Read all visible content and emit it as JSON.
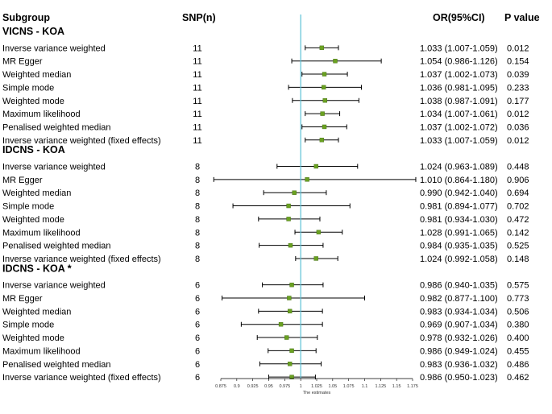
{
  "header": {
    "subgroup": "Subgroup",
    "snp": "SNP(n)",
    "or": "OR(95%CI)",
    "pvalue": "P value"
  },
  "chart_data": {
    "type": "forest",
    "xlabel": "The estimates",
    "xlim": [
      0.875,
      1.175
    ],
    "ticks": [
      0.875,
      0.9,
      0.925,
      0.95,
      0.975,
      1,
      1.025,
      1.05,
      1.075,
      1.1,
      1.125,
      1.15,
      1.175
    ],
    "tick_labels": [
      "0.875",
      "0.9",
      "0.925",
      "0.95",
      "0.975",
      "1",
      "1.025",
      "1.05",
      "1.075",
      "1.1",
      "1.125",
      "1.15",
      "1.175"
    ],
    "reference_line": 1,
    "colors": {
      "point": "#6aa121",
      "reference": "#5bc0d6",
      "line": "#000000"
    },
    "groups": [
      {
        "title": "VICNS - KOA",
        "rows": [
          {
            "method": "Inverse variance weighted",
            "snp": "11",
            "or": 1.033,
            "lo": 1.007,
            "hi": 1.059,
            "ci_text": "1.033 (1.007-1.059)",
            "p": "0.012"
          },
          {
            "method": "MR Egger",
            "snp": "11",
            "or": 1.054,
            "lo": 0.986,
            "hi": 1.126,
            "ci_text": "1.054 (0.986-1.126)",
            "p": "0.154"
          },
          {
            "method": "Weighted median",
            "snp": "11",
            "or": 1.037,
            "lo": 1.002,
            "hi": 1.073,
            "ci_text": "1.037 (1.002-1.073)",
            "p": "0.039"
          },
          {
            "method": "Simple mode",
            "snp": "11",
            "or": 1.036,
            "lo": 0.981,
            "hi": 1.095,
            "ci_text": "1.036 (0.981-1.095)",
            "p": "0.233"
          },
          {
            "method": "Weighted mode",
            "snp": "11",
            "or": 1.038,
            "lo": 0.987,
            "hi": 1.091,
            "ci_text": "1.038 (0.987-1.091)",
            "p": "0.177"
          },
          {
            "method": "Maximum likelihood",
            "snp": "11",
            "or": 1.034,
            "lo": 1.007,
            "hi": 1.061,
            "ci_text": "1.034 (1.007-1.061)",
            "p": "0.012"
          },
          {
            "method": "Penalised weighted median",
            "snp": "11",
            "or": 1.037,
            "lo": 1.002,
            "hi": 1.072,
            "ci_text": "1.037 (1.002-1.072)",
            "p": "0.036"
          },
          {
            "method": "Inverse variance weighted (fixed effects)",
            "snp": "11",
            "or": 1.033,
            "lo": 1.007,
            "hi": 1.059,
            "ci_text": "1.033 (1.007-1.059)",
            "p": "0.012"
          }
        ]
      },
      {
        "title": "IDCNS - KOA",
        "rows": [
          {
            "method": "Inverse variance weighted",
            "snp": "8",
            "or": 1.024,
            "lo": 0.963,
            "hi": 1.089,
            "ci_text": "1.024 (0.963-1.089)",
            "p": "0.448"
          },
          {
            "method": "MR Egger",
            "snp": "8",
            "or": 1.01,
            "lo": 0.864,
            "hi": 1.18,
            "ci_text": "1.010 (0.864-1.180)",
            "p": "0.906"
          },
          {
            "method": "Weighted median",
            "snp": "8",
            "or": 0.99,
            "lo": 0.942,
            "hi": 1.04,
            "ci_text": "0.990 (0.942-1.040)",
            "p": "0.694"
          },
          {
            "method": "Simple mode",
            "snp": "8",
            "or": 0.981,
            "lo": 0.894,
            "hi": 1.077,
            "ci_text": "0.981 (0.894-1.077)",
            "p": "0.702"
          },
          {
            "method": "Weighted mode",
            "snp": "8",
            "or": 0.981,
            "lo": 0.934,
            "hi": 1.03,
            "ci_text": "0.981 (0.934-1.030)",
            "p": "0.472"
          },
          {
            "method": "Maximum likelihood",
            "snp": "8",
            "or": 1.028,
            "lo": 0.991,
            "hi": 1.065,
            "ci_text": "1.028 (0.991-1.065)",
            "p": "0.142"
          },
          {
            "method": "Penalised weighted median",
            "snp": "8",
            "or": 0.984,
            "lo": 0.935,
            "hi": 1.035,
            "ci_text": "0.984 (0.935-1.035)",
            "p": "0.525"
          },
          {
            "method": "Inverse variance weighted (fixed effects)",
            "snp": "8",
            "or": 1.024,
            "lo": 0.992,
            "hi": 1.058,
            "ci_text": "1.024 (0.992-1.058)",
            "p": "0.148"
          }
        ]
      },
      {
        "title": "IDCNS - KOA *",
        "rows": [
          {
            "method": "Inverse variance weighted",
            "snp": "6",
            "or": 0.986,
            "lo": 0.94,
            "hi": 1.035,
            "ci_text": "0.986 (0.940-1.035)",
            "p": "0.575"
          },
          {
            "method": "MR Egger",
            "snp": "6",
            "or": 0.982,
            "lo": 0.877,
            "hi": 1.1,
            "ci_text": "0.982 (0.877-1.100)",
            "p": "0.773"
          },
          {
            "method": "Weighted median",
            "snp": "6",
            "or": 0.983,
            "lo": 0.934,
            "hi": 1.034,
            "ci_text": "0.983 (0.934-1.034)",
            "p": "0.506"
          },
          {
            "method": "Simple mode",
            "snp": "6",
            "or": 0.969,
            "lo": 0.907,
            "hi": 1.034,
            "ci_text": "0.969 (0.907-1.034)",
            "p": "0.380"
          },
          {
            "method": "Weighted mode",
            "snp": "6",
            "or": 0.978,
            "lo": 0.932,
            "hi": 1.026,
            "ci_text": "0.978 (0.932-1.026)",
            "p": "0.400"
          },
          {
            "method": "Maximum likelihood",
            "snp": "6",
            "or": 0.986,
            "lo": 0.949,
            "hi": 1.024,
            "ci_text": "0.986 (0.949-1.024)",
            "p": "0.455"
          },
          {
            "method": "Penalised weighted median",
            "snp": "6",
            "or": 0.983,
            "lo": 0.936,
            "hi": 1.032,
            "ci_text": "0.983 (0.936-1.032)",
            "p": "0.486"
          },
          {
            "method": "Inverse variance weighted (fixed effects)",
            "snp": "6",
            "or": 0.986,
            "lo": 0.95,
            "hi": 1.023,
            "ci_text": "0.986 (0.950-1.023)",
            "p": "0.462"
          }
        ]
      }
    ]
  }
}
